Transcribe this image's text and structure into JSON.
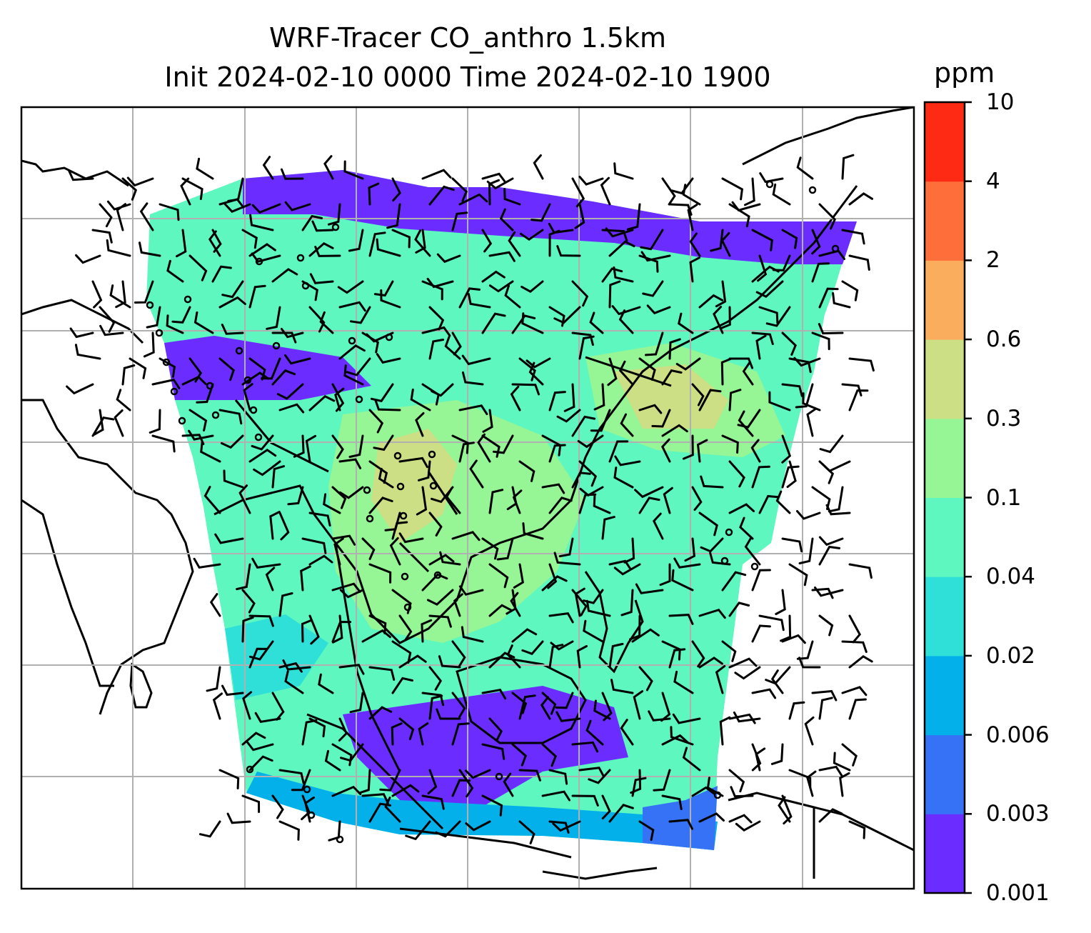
{
  "title": {
    "line1": "WRF-Tracer CO_anthro 1.5km",
    "line2": "Init 2024-02-10 0000 Time 2024-02-10 1900"
  },
  "colorbar": {
    "unit": "ppm",
    "levels": [
      "0.001",
      "0.003",
      "0.006",
      "0.02",
      "0.04",
      "0.1",
      "0.3",
      "0.6",
      "2",
      "4",
      "10"
    ],
    "colors": [
      "#6a2cff",
      "#3672f5",
      "#04b0ea",
      "#2ee0d8",
      "#5ef7c0",
      "#96f594",
      "#ccdf84",
      "#fbad5e",
      "#fe6e3a",
      "#fe2a14"
    ]
  },
  "map": {
    "gridlines": true,
    "overlays": [
      "coastlines",
      "country-borders",
      "wind-barbs",
      "calm-wind-circles"
    ]
  }
}
